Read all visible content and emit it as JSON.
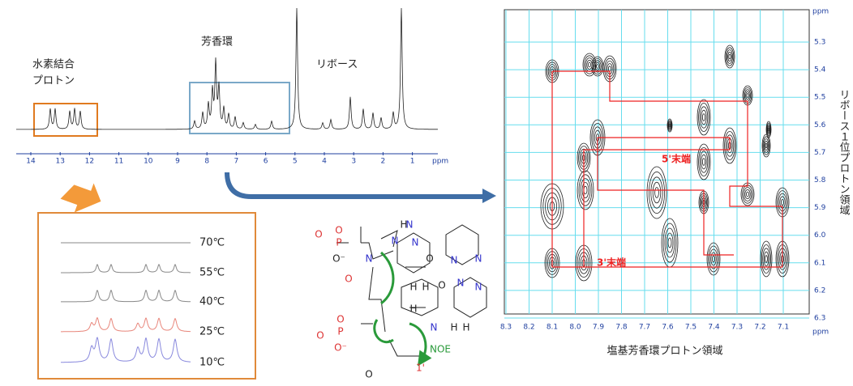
{
  "spectrum_1d": {
    "hbond_label": [
      "水素結合",
      "プロトン"
    ],
    "aromatic_label": "芳香環",
    "ribose_label": "リボース",
    "x_ticks": [
      "14",
      "13",
      "12",
      "11",
      "10",
      "9",
      "8",
      "7",
      "6",
      "5",
      "4",
      "3",
      "2",
      "1"
    ],
    "unit": "ppm"
  },
  "temperature_panel": {
    "temperatures": [
      "70℃",
      "55℃",
      "40℃",
      "25℃",
      "10℃"
    ]
  },
  "molecule": {
    "atoms": [
      "O",
      "P",
      "O",
      "O⁻",
      "O",
      "N",
      "N",
      "N",
      "N",
      "H",
      "H",
      "O",
      "N",
      "N",
      "H",
      "O",
      "H",
      "N",
      "O",
      "P",
      "O",
      "O⁻",
      "N",
      "H",
      "H",
      "N",
      "O"
    ],
    "noe_label": "NOE",
    "h1_label": "1'"
  },
  "noesy": {
    "x_ticks": [
      "8.3",
      "8.2",
      "8.1",
      "8.0",
      "7.9",
      "7.8",
      "7.7",
      "7.6",
      "7.5",
      "7.4",
      "7.3",
      "7.2",
      "7.1"
    ],
    "y_ticks": [
      "5.3",
      "5.4",
      "5.5",
      "5.6",
      "5.7",
      "5.8",
      "5.9",
      "6.0",
      "6.1",
      "6.2",
      "6.3"
    ],
    "unit": "ppm",
    "x_label": "塩基芳香環プロトン領域",
    "y_label": "リボース１位プロトン領域",
    "annotations": [
      "5'末端",
      "3'末端"
    ]
  }
}
